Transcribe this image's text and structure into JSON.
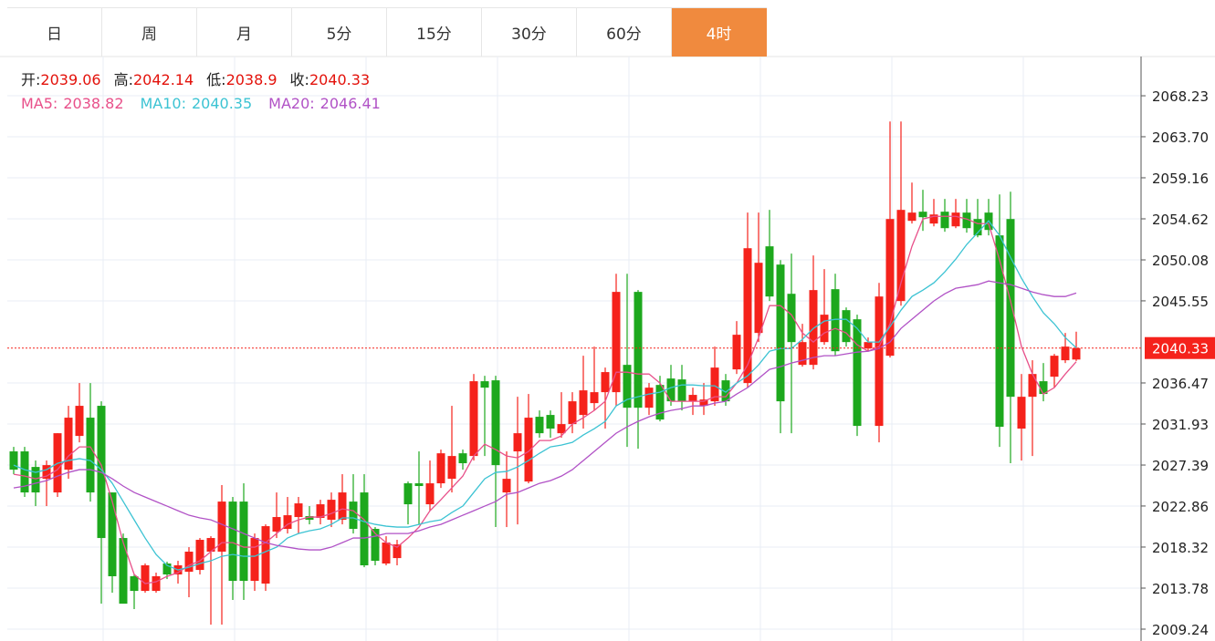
{
  "tabs": [
    "日",
    "周",
    "月",
    "5分",
    "15分",
    "30分",
    "60分",
    "4时"
  ],
  "active_tab": 7,
  "chart_data": {
    "type": "candlestick",
    "up_color": "#f5221b",
    "down_color": "#1da81d",
    "grid": true,
    "last_price_line": true,
    "info_labels": [
      "开:",
      "高:",
      "低:",
      "收:"
    ],
    "ylim": [
      2007.93,
      2072.57
    ],
    "yticks": [
      2068.23,
      {
        "value": 2063.7,
        "label": "2063.70"
      },
      2059.16,
      2054.62,
      2050.08,
      2045.55,
      2036.47,
      2031.93,
      2027.39,
      2022.86,
      2018.32,
      2013.78,
      2009.24
    ],
    "open": [
      2028.9,
      2028.9,
      2027.18,
      2025.87,
      2024.36,
      2026.88,
      2030.61,
      2032.63,
      2033.94,
      2024.36,
      2019.32,
      2015.09,
      2013.47,
      2013.47,
      2016.5,
      2015.29,
      2015.59,
      2015.79,
      2017.81,
      2017.81,
      2023.35,
      2023.35,
      2014.58,
      2014.28,
      2020.03,
      2020.33,
      2021.64,
      2021.74,
      2021.54,
      2021.34,
      2021.34,
      2023.35,
      2024.36,
      2020.33,
      2016.5,
      2017.1,
      2025.37,
      2025.37,
      2023.05,
      2025.37,
      2025.87,
      2028.69,
      2028.39,
      2036.66,
      2036.76,
      2024.36,
      2028.9,
      2025.57,
      2032.73,
      2032.93,
      2030.91,
      2031.92,
      2032.93,
      2034.24,
      2035.45,
      2035.45,
      2038.47,
      2046.54,
      2033.73,
      2036.25,
      2036.96,
      2036.86,
      2034.44,
      2033.94,
      2034.44,
      2036.76,
      2037.97,
      2036.46,
      2042.0,
      2051.58,
      2049.56,
      2046.33,
      2038.47,
      2038.47,
      2040.99,
      2046.84,
      2044.52,
      2043.51,
      2040.29,
      2031.72,
      2039.48,
      2045.53,
      2054.4,
      2055.41,
      2054.1,
      2055.41,
      2053.79,
      2055.31,
      2054.6,
      2055.31,
      2052.79,
      2054.6,
      2031.42,
      2034.94,
      2036.66,
      2037.16,
      2038.98,
      2039.06
    ],
    "high": [
      2029.4,
      2029.4,
      2027.89,
      2027.89,
      2030.91,
      2033.94,
      2036.46,
      2036.46,
      2034.44,
      2024.36,
      2019.82,
      2015.29,
      2016.5,
      2015.49,
      2016.7,
      2016.8,
      2018.31,
      2019.32,
      2019.52,
      2025.17,
      2023.86,
      2025.37,
      2019.82,
      2020.83,
      2024.36,
      2023.86,
      2023.86,
      2022.85,
      2023.55,
      2024.36,
      2026.38,
      2026.38,
      2026.38,
      2020.53,
      2019.52,
      2019.12,
      2025.57,
      2028.9,
      2027.89,
      2029.1,
      2033.94,
      2029.1,
      2037.46,
      2037.26,
      2037.26,
      2028.9,
      2034.94,
      2035.25,
      2033.43,
      2033.43,
      2035.45,
      2035.45,
      2039.48,
      2040.49,
      2038.17,
      2048.55,
      2048.55,
      2046.74,
      2036.46,
      2037.26,
      2038.47,
      2038.47,
      2035.95,
      2036.46,
      2040.49,
      2037.46,
      2043.31,
      2055.31,
      2055.31,
      2055.61,
      2050.06,
      2050.77,
      2043.01,
      2050.57,
      2049.06,
      2048.55,
      2044.82,
      2044.02,
      2041.5,
      2047.54,
      2065.39,
      2065.39,
      2058.63,
      2057.83,
      2056.82,
      2056.82,
      2056.82,
      2056.82,
      2056.82,
      2056.82,
      2057.32,
      2057.62,
      2037.46,
      2038.98,
      2038.67,
      2039.68,
      2042.0,
      2042.14
    ],
    "low": [
      2026.38,
      2023.86,
      2022.85,
      2022.85,
      2023.86,
      2025.87,
      2029.9,
      2023.35,
      2012.06,
      2013.27,
      2012.06,
      2011.46,
      2013.27,
      2013.27,
      2014.78,
      2014.28,
      2012.77,
      2015.29,
      2009.74,
      2009.74,
      2012.47,
      2012.47,
      2013.47,
      2013.47,
      2019.32,
      2019.82,
      2019.82,
      2020.83,
      2020.83,
      2020.53,
      2020.83,
      2019.82,
      2016.09,
      2016.3,
      2016.3,
      2016.3,
      2020.83,
      2020.83,
      2022.34,
      2024.86,
      2024.36,
      2026.88,
      2027.89,
      2028.39,
      2020.53,
      2020.53,
      2020.83,
      2025.37,
      2030.41,
      2030.41,
      2030.41,
      2030.91,
      2031.42,
      2033.43,
      2031.42,
      2033.94,
      2029.4,
      2029.2,
      2032.93,
      2032.22,
      2033.94,
      2033.43,
      2032.93,
      2032.93,
      2033.94,
      2033.94,
      2037.46,
      2035.95,
      2040.99,
      2045.53,
      2030.91,
      2030.91,
      2038.27,
      2037.97,
      2040.69,
      2039.48,
      2040.49,
      2030.61,
      2039.98,
      2029.9,
      2039.28,
      2045.02,
      2054.1,
      2053.29,
      2053.79,
      2053.19,
      2053.59,
      2053.09,
      2052.58,
      2052.79,
      2029.4,
      2027.59,
      2027.89,
      2028.39,
      2034.44,
      2035.95,
      2038.67,
      2038.9
    ],
    "close": [
      2026.88,
      2024.36,
      2024.36,
      2027.38,
      2030.91,
      2032.63,
      2033.94,
      2024.36,
      2019.32,
      2015.09,
      2012.06,
      2013.47,
      2016.3,
      2015.09,
      2015.29,
      2016.3,
      2017.81,
      2019.12,
      2019.32,
      2023.35,
      2014.58,
      2014.58,
      2019.32,
      2020.63,
      2021.64,
      2021.84,
      2023.15,
      2021.34,
      2023.05,
      2023.55,
      2024.36,
      2020.33,
      2016.3,
      2016.8,
      2018.82,
      2018.61,
      2023.05,
      2025.07,
      2025.37,
      2028.69,
      2028.39,
      2027.59,
      2036.66,
      2035.95,
      2027.38,
      2025.87,
      2030.91,
      2032.63,
      2030.91,
      2031.42,
      2031.92,
      2034.44,
      2035.65,
      2035.45,
      2037.67,
      2046.54,
      2033.73,
      2033.73,
      2035.95,
      2032.42,
      2034.44,
      2034.44,
      2035.15,
      2034.64,
      2038.17,
      2034.44,
      2041.8,
      2051.37,
      2049.76,
      2046.03,
      2034.44,
      2040.99,
      2040.99,
      2046.74,
      2044.02,
      2039.98,
      2040.99,
      2031.72,
      2040.99,
      2046.03,
      2054.6,
      2055.61,
      2055.31,
      2054.8,
      2055.1,
      2053.59,
      2055.31,
      2053.59,
      2052.79,
      2053.39,
      2031.62,
      2034.94,
      2034.94,
      2037.46,
      2035.25,
      2039.48,
      2040.49,
      2040.33
    ],
    "lines": [
      {
        "name": "MA5:",
        "color": "#e8508a",
        "values": [
          2026.37,
          2026.17,
          2025.87,
          2026.17,
          2026.88,
          2028.39,
          2029.4,
          2029.4,
          2027.38,
          2023.35,
          2018.81,
          2015.29,
          2014.28,
          2014.48,
          2015.08,
          2015.49,
          2016.29,
          2016.8,
          2017.81,
          2018.81,
          2018.81,
          2018.31,
          2018.31,
          2018.81,
          2019.82,
          2020.83,
          2021.33,
          2021.64,
          2021.64,
          2022.04,
          2022.54,
          2022.34,
          2021.33,
          2019.82,
          2018.81,
          2018.31,
          2019.32,
          2020.53,
          2022.34,
          2023.55,
          2024.86,
          2026.17,
          2028.39,
          2029.7,
          2029.1,
          2028.39,
          2028.19,
          2028.89,
          2030.1,
          2030.1,
          2030.61,
          2031.92,
          2032.62,
          2033.43,
          2034.44,
          2037.66,
          2037.66,
          2037.46,
          2037.46,
          2036.45,
          2034.44,
          2034.44,
          2034.44,
          2034.44,
          2034.94,
          2034.94,
          2036.45,
          2038.47,
          2041.49,
          2045.02,
          2045.02,
          2044.01,
          2042.0,
          2040.99,
          2042.0,
          2042.5,
          2042.0,
          2040.69,
          2039.98,
          2040.49,
          2043.01,
          2047.54,
          2051.57,
          2054.6,
          2054.9,
          2054.9,
          2054.9,
          2054.6,
          2054.09,
          2054.09,
          2050.06,
          2045.53,
          2040.49,
          2037.46,
          2035.24,
          2035.95,
          2037.46,
          2038.82
        ]
      },
      {
        "name": "MA10:",
        "color": "#3cc3d3",
        "values": [
          2027.38,
          2026.88,
          2026.58,
          2026.88,
          2027.58,
          2027.89,
          2028.09,
          2027.89,
          2026.88,
          2025.37,
          2023.35,
          2021.33,
          2019.32,
          2017.5,
          2016.29,
          2015.79,
          2016.09,
          2016.5,
          2016.8,
          2017.3,
          2017.5,
          2017.3,
          2017.3,
          2017.81,
          2018.31,
          2019.32,
          2019.82,
          2020.12,
          2020.33,
          2020.83,
          2021.54,
          2021.54,
          2021.13,
          2020.83,
          2020.63,
          2020.53,
          2020.53,
          2020.83,
          2021.13,
          2021.33,
          2022.14,
          2022.85,
          2024.36,
          2025.87,
          2026.58,
          2026.68,
          2027.18,
          2027.89,
          2028.69,
          2029.4,
          2029.6,
          2029.9,
          2030.71,
          2031.41,
          2032.22,
          2033.93,
          2034.64,
          2034.94,
          2035.24,
          2035.45,
          2035.95,
          2036.25,
          2036.25,
          2036.15,
          2036.15,
          2035.45,
          2036.45,
          2037.26,
          2038.47,
          2039.98,
          2040.28,
          2040.28,
          2041.29,
          2042.5,
          2043.31,
          2043.51,
          2043.51,
          2042.5,
          2040.99,
          2040.99,
          2042.7,
          2044.52,
          2046.03,
          2046.74,
          2047.54,
          2048.75,
          2050.16,
          2051.78,
          2053.09,
          2054.4,
          2052.78,
          2050.36,
          2048.05,
          2046.03,
          2044.22,
          2043.01,
          2041.49,
          2040.35
        ]
      },
      {
        "name": "MA20:",
        "color": "#b152c6",
        "values": [
          2024.86,
          2025.06,
          2025.37,
          2025.67,
          2026.17,
          2026.58,
          2026.88,
          2026.88,
          2026.58,
          2025.87,
          2025.06,
          2024.36,
          2023.85,
          2023.35,
          2022.85,
          2022.34,
          2021.84,
          2021.54,
          2021.33,
          2020.83,
          2020.33,
          2019.82,
          2019.32,
          2018.81,
          2018.51,
          2018.31,
          2018.11,
          2018.01,
          2018.01,
          2018.31,
          2018.81,
          2019.32,
          2019.32,
          2019.52,
          2019.82,
          2019.82,
          2019.82,
          2020.12,
          2020.53,
          2020.83,
          2021.33,
          2021.84,
          2022.34,
          2022.85,
          2023.35,
          2024.16,
          2024.36,
          2024.86,
          2025.37,
          2025.67,
          2026.17,
          2026.88,
          2027.89,
          2028.89,
          2029.9,
          2030.91,
          2031.62,
          2032.22,
          2032.72,
          2033.13,
          2033.43,
          2033.63,
          2033.93,
          2033.93,
          2034.24,
          2034.44,
          2035.24,
          2035.95,
          2036.96,
          2037.97,
          2038.27,
          2038.67,
          2038.97,
          2039.28,
          2039.48,
          2039.48,
          2039.68,
          2039.88,
          2039.98,
          2040.28,
          2040.99,
          2042.5,
          2043.51,
          2044.52,
          2045.53,
          2046.33,
          2046.94,
          2047.14,
          2047.34,
          2047.74,
          2047.54,
          2047.34,
          2046.94,
          2046.53,
          2046.23,
          2046.03,
          2046.03,
          2046.41
        ]
      }
    ]
  }
}
